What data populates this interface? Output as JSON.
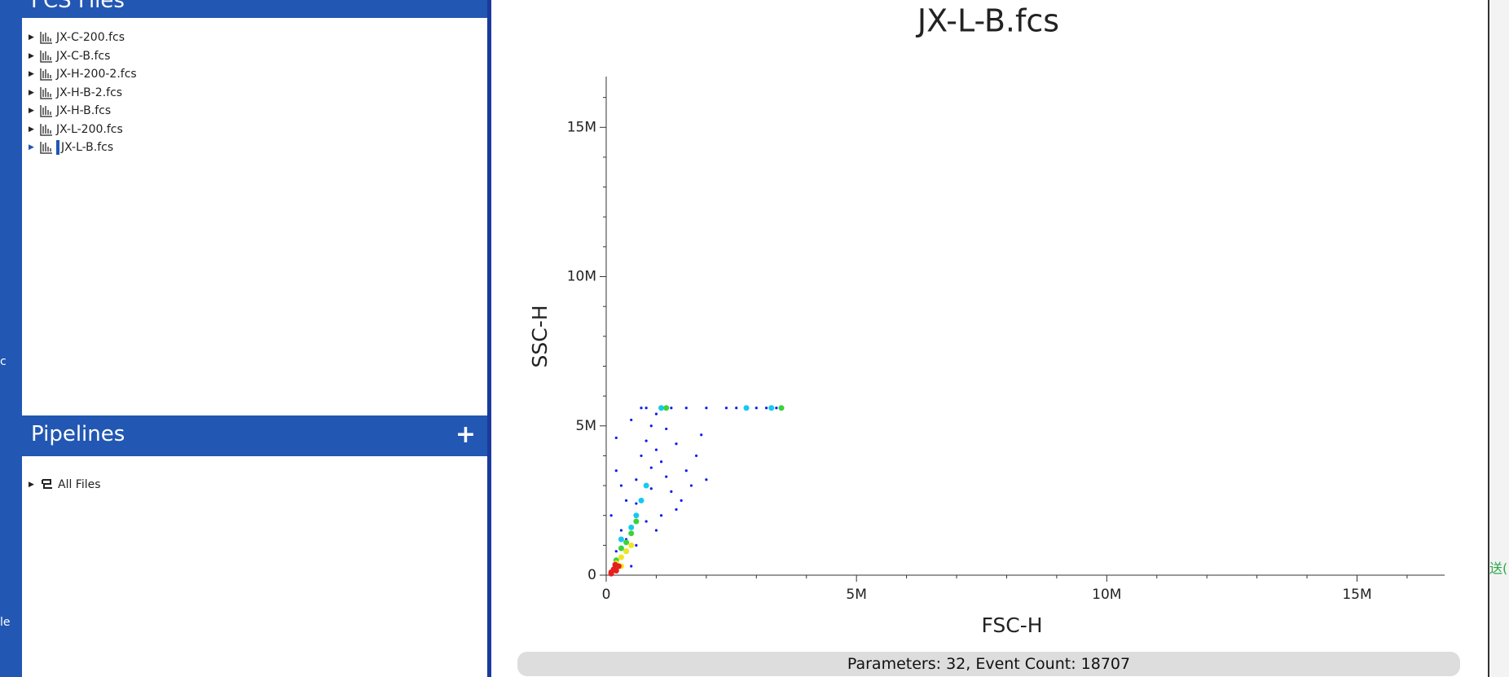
{
  "edge_left": [
    "c",
    "le"
  ],
  "edge_right": "送(",
  "files_panel": {
    "title": "FCS Files",
    "items": [
      "JX-C-200.fcs",
      "JX-C-B.fcs",
      "JX-H-200-2.fcs",
      "JX-H-B-2.fcs",
      "JX-H-B.fcs",
      "JX-L-200.fcs",
      "JX-L-B.fcs"
    ]
  },
  "pipelines_panel": {
    "title": "Pipelines",
    "add_button": "+",
    "items": [
      "All Files"
    ]
  },
  "plot": {
    "type": "scatter",
    "title": "JX-L-B.fcs",
    "x_label": "FSC-H",
    "y_label": "SSC-H",
    "xlim": [
      0,
      16750000
    ],
    "ylim": [
      0,
      16700000
    ],
    "xticks": [
      0,
      {
        "value": 5000000,
        "label": "5M"
      },
      {
        "value": 10000000,
        "label": "10M"
      },
      {
        "value": 15000000,
        "label": "15M"
      }
    ],
    "yticks": [
      0,
      {
        "value": 5000000,
        "label": "5M"
      },
      {
        "value": 10000000,
        "label": "10M"
      },
      {
        "value": 15000000,
        "label": "15M"
      }
    ],
    "xminorticks": [
      1000000,
      2000000,
      3000000,
      4000000,
      6000000,
      7000000,
      8000000,
      9000000,
      11000000,
      12000000,
      13000000,
      14000000,
      16000000
    ],
    "yminorticks": [
      1000000,
      2000000,
      3000000,
      4000000,
      6000000,
      7000000,
      8000000,
      9000000,
      11000000,
      12000000,
      13000000,
      14000000,
      16000000
    ],
    "series": [
      {
        "color": "#0a1cf0",
        "x": [
          200000,
          500000,
          100000,
          200000,
          300000,
          400000,
          600000,
          700000,
          800000,
          900000,
          1000000,
          1100000,
          1200000,
          1300000,
          1500000,
          1600000,
          1800000,
          1900000,
          2000000,
          1400000,
          900000,
          800000,
          600000,
          500000,
          1000000,
          1100000,
          700000,
          800000,
          1300000,
          1600000,
          2000000,
          2400000,
          2600000,
          3000000,
          3200000,
          3400000,
          300000,
          200000,
          1200000,
          1000000,
          900000,
          600000,
          1400000,
          1700000,
          400000
        ],
        "y": [
          4600000,
          5200000,
          2000000,
          3500000,
          3000000,
          2500000,
          3200000,
          4000000,
          4500000,
          5000000,
          4200000,
          3800000,
          3300000,
          2800000,
          2500000,
          3500000,
          4000000,
          4700000,
          3200000,
          2200000,
          2900000,
          1800000,
          1000000,
          300000,
          1500000,
          2000000,
          5600000,
          5600000,
          5600000,
          5600000,
          5600000,
          5600000,
          5600000,
          5600000,
          5600000,
          5600000,
          1500000,
          800000,
          4900000,
          5400000,
          3600000,
          2400000,
          4400000,
          3000000,
          1200000
        ]
      },
      {
        "color": "#18c8f0",
        "x": [
          300000,
          500000,
          600000,
          700000,
          400000,
          1100000,
          2800000,
          3300000,
          800000
        ],
        "y": [
          1200000,
          1600000,
          2000000,
          2500000,
          800000,
          5600000,
          5600000,
          5600000,
          3000000
        ]
      },
      {
        "color": "#3cd23c",
        "x": [
          300000,
          500000,
          600000,
          400000,
          1200000,
          3500000,
          200000
        ],
        "y": [
          900000,
          1400000,
          1800000,
          1100000,
          5600000,
          5600000,
          500000
        ]
      },
      {
        "color": "#f0e61e",
        "x": [
          200000,
          300000,
          400000,
          300000,
          500000,
          200000
        ],
        "y": [
          400000,
          600000,
          800000,
          300000,
          1000000,
          200000
        ]
      },
      {
        "color": "#e61e1e",
        "x": [
          100000,
          150000,
          200000,
          250000,
          100000,
          180000
        ],
        "y": [
          100000,
          200000,
          150000,
          300000,
          50000,
          350000
        ]
      }
    ]
  },
  "status": "Parameters: 32, Event Count: 18707"
}
